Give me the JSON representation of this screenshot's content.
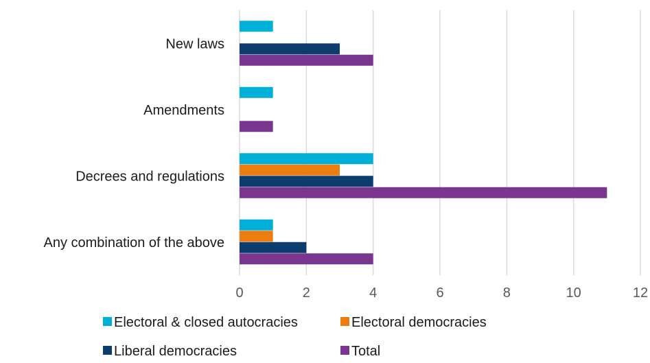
{
  "chart_data": {
    "type": "bar",
    "orientation": "horizontal",
    "categories": [
      "New laws",
      "Amendments",
      "Decrees and regulations",
      "Any combination of the above"
    ],
    "series": [
      {
        "name": "Electoral & closed autocracies",
        "color": "#00b0d8",
        "values": [
          1,
          1,
          4,
          1
        ]
      },
      {
        "name": "Electoral democracies",
        "color": "#ed7d0e",
        "values": [
          0,
          0,
          3,
          1
        ]
      },
      {
        "name": "Liberal democracies",
        "color": "#0c3d6e",
        "values": [
          3,
          0,
          4,
          2
        ]
      },
      {
        "name": "Total",
        "color": "#7a3590",
        "values": [
          4,
          1,
          11,
          4
        ]
      }
    ],
    "xlim": [
      0,
      12
    ],
    "xticks": [
      "0",
      "2",
      "4",
      "6",
      "8",
      "10",
      "12"
    ],
    "grid": "vertical",
    "legend_position": "bottom"
  }
}
